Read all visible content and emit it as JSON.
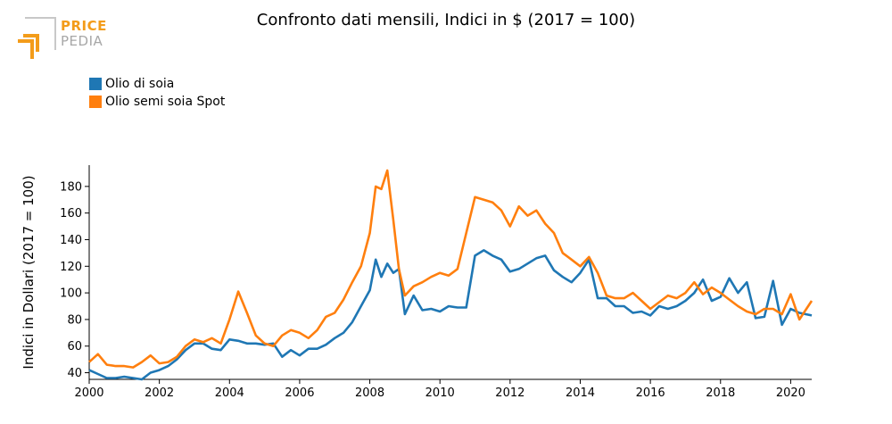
{
  "logo": {
    "line1": "PRICE",
    "line2": "PEDIA",
    "color1": "#f39c1a",
    "color2": "#a7a7a7"
  },
  "chart_data": {
    "type": "line",
    "title": "Confronto dati mensili, Indici in $ (2017 = 100)",
    "xlabel": "",
    "ylabel": "Indici in Dollari (2017 = 100)",
    "xlim": [
      2000,
      2020.6
    ],
    "ylim": [
      35,
      196
    ],
    "x_ticks": [
      2000,
      2002,
      2004,
      2006,
      2008,
      2010,
      2012,
      2014,
      2016,
      2018,
      2020
    ],
    "y_ticks": [
      40,
      60,
      80,
      100,
      120,
      140,
      160,
      180
    ],
    "grid": false,
    "legend_position": "top-left",
    "series": [
      {
        "name": "Olio di soia",
        "color": "#1f77b4",
        "x": [
          2000.0,
          2000.25,
          2000.5,
          2000.75,
          2001.0,
          2001.25,
          2001.5,
          2001.75,
          2002.0,
          2002.25,
          2002.5,
          2002.75,
          2003.0,
          2003.25,
          2003.5,
          2003.75,
          2004.0,
          2004.25,
          2004.5,
          2004.75,
          2005.0,
          2005.25,
          2005.5,
          2005.75,
          2006.0,
          2006.25,
          2006.5,
          2006.75,
          2007.0,
          2007.25,
          2007.5,
          2007.75,
          2008.0,
          2008.17,
          2008.33,
          2008.5,
          2008.67,
          2008.83,
          2009.0,
          2009.25,
          2009.5,
          2009.75,
          2010.0,
          2010.25,
          2010.5,
          2010.75,
          2011.0,
          2011.25,
          2011.5,
          2011.75,
          2012.0,
          2012.25,
          2012.5,
          2012.75,
          2013.0,
          2013.25,
          2013.5,
          2013.75,
          2014.0,
          2014.25,
          2014.5,
          2014.75,
          2015.0,
          2015.25,
          2015.5,
          2015.75,
          2016.0,
          2016.25,
          2016.5,
          2016.75,
          2017.0,
          2017.25,
          2017.5,
          2017.75,
          2018.0,
          2018.25,
          2018.5,
          2018.75,
          2019.0,
          2019.25,
          2019.5,
          2019.75,
          2020.0,
          2020.25,
          2020.6
        ],
        "values": [
          42,
          39,
          36,
          36,
          37,
          36,
          35,
          40,
          42,
          45,
          50,
          57,
          62,
          62,
          58,
          57,
          65,
          64,
          62,
          62,
          61,
          62,
          52,
          57,
          53,
          58,
          58,
          61,
          66,
          70,
          78,
          90,
          102,
          125,
          112,
          122,
          115,
          118,
          84,
          98,
          87,
          88,
          86,
          90,
          89,
          89,
          128,
          132,
          128,
          125,
          116,
          118,
          122,
          126,
          128,
          117,
          112,
          108,
          115,
          125,
          96,
          96,
          90,
          90,
          85,
          86,
          83,
          90,
          88,
          90,
          94,
          100,
          110,
          94,
          97,
          111,
          100,
          108,
          81,
          82,
          109,
          76,
          88,
          85,
          83
        ]
      },
      {
        "name": "Olio semi soia Spot",
        "color": "#ff7f0e",
        "x": [
          2000.0,
          2000.25,
          2000.5,
          2000.75,
          2001.0,
          2001.25,
          2001.5,
          2001.75,
          2002.0,
          2002.25,
          2002.5,
          2002.75,
          2003.0,
          2003.25,
          2003.5,
          2003.75,
          2004.0,
          2004.25,
          2004.5,
          2004.75,
          2005.0,
          2005.25,
          2005.5,
          2005.75,
          2006.0,
          2006.25,
          2006.5,
          2006.75,
          2007.0,
          2007.25,
          2007.5,
          2007.75,
          2008.0,
          2008.17,
          2008.33,
          2008.5,
          2008.67,
          2008.83,
          2009.0,
          2009.25,
          2009.5,
          2009.75,
          2010.0,
          2010.25,
          2010.5,
          2010.75,
          2011.0,
          2011.25,
          2011.5,
          2011.75,
          2012.0,
          2012.25,
          2012.5,
          2012.75,
          2013.0,
          2013.25,
          2013.5,
          2013.75,
          2014.0,
          2014.25,
          2014.5,
          2014.75,
          2015.0,
          2015.25,
          2015.5,
          2015.75,
          2016.0,
          2016.25,
          2016.5,
          2016.75,
          2017.0,
          2017.25,
          2017.5,
          2017.75,
          2018.0,
          2018.25,
          2018.5,
          2018.75,
          2019.0,
          2019.25,
          2019.5,
          2019.75,
          2020.0,
          2020.25,
          2020.6
        ],
        "values": [
          48,
          54,
          46,
          45,
          45,
          44,
          48,
          53,
          47,
          48,
          52,
          60,
          65,
          63,
          66,
          62,
          80,
          101,
          85,
          68,
          62,
          60,
          68,
          72,
          70,
          66,
          72,
          82,
          85,
          95,
          108,
          120,
          145,
          180,
          178,
          192,
          155,
          118,
          98,
          105,
          108,
          112,
          115,
          113,
          118,
          145,
          172,
          170,
          168,
          162,
          150,
          165,
          158,
          162,
          152,
          145,
          130,
          125,
          120,
          127,
          115,
          98,
          96,
          96,
          100,
          94,
          88,
          93,
          98,
          96,
          100,
          108,
          99,
          104,
          100,
          95,
          90,
          86,
          84,
          88,
          88,
          84,
          99,
          80,
          94
        ]
      }
    ]
  }
}
